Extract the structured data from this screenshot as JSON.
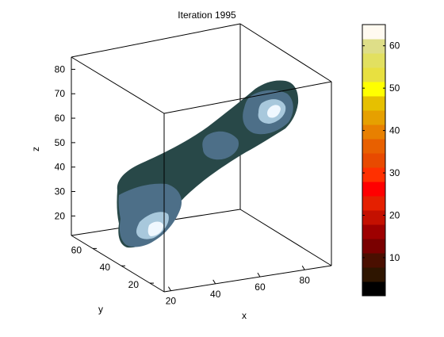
{
  "chart_data": [
    {
      "type": "surface",
      "title": "Iteration 1995",
      "xlabel": "x",
      "ylabel": "y",
      "zlabel": "z",
      "x_ticks": [
        20,
        40,
        60,
        80
      ],
      "y_ticks": [
        20,
        40,
        60
      ],
      "z_ticks": [
        20,
        30,
        40,
        50,
        60,
        70,
        80
      ],
      "xlim": [
        17,
        92
      ],
      "ylim": [
        10,
        75
      ],
      "zlim": [
        12,
        85
      ],
      "grid": false,
      "box": true,
      "surface_colors": {
        "dark": "#284848",
        "mid": "#4d6f88",
        "light": "#a8c8dc",
        "highlight": "#f0f8ff"
      }
    },
    {
      "type": "colorbar",
      "ticks": [
        10,
        20,
        30,
        40,
        50,
        60
      ],
      "range": [
        1,
        65
      ],
      "bands": [
        "#000000",
        "#2e1500",
        "#4a0f00",
        "#7a0000",
        "#9e0000",
        "#c41000",
        "#e52000",
        "#ff0000",
        "#ff3000",
        "#e84a00",
        "#e86000",
        "#e88000",
        "#e6a000",
        "#e6c000",
        "#ffff00",
        "#e8e040",
        "#e2e060",
        "#dede88",
        "#fffaf0"
      ]
    }
  ]
}
